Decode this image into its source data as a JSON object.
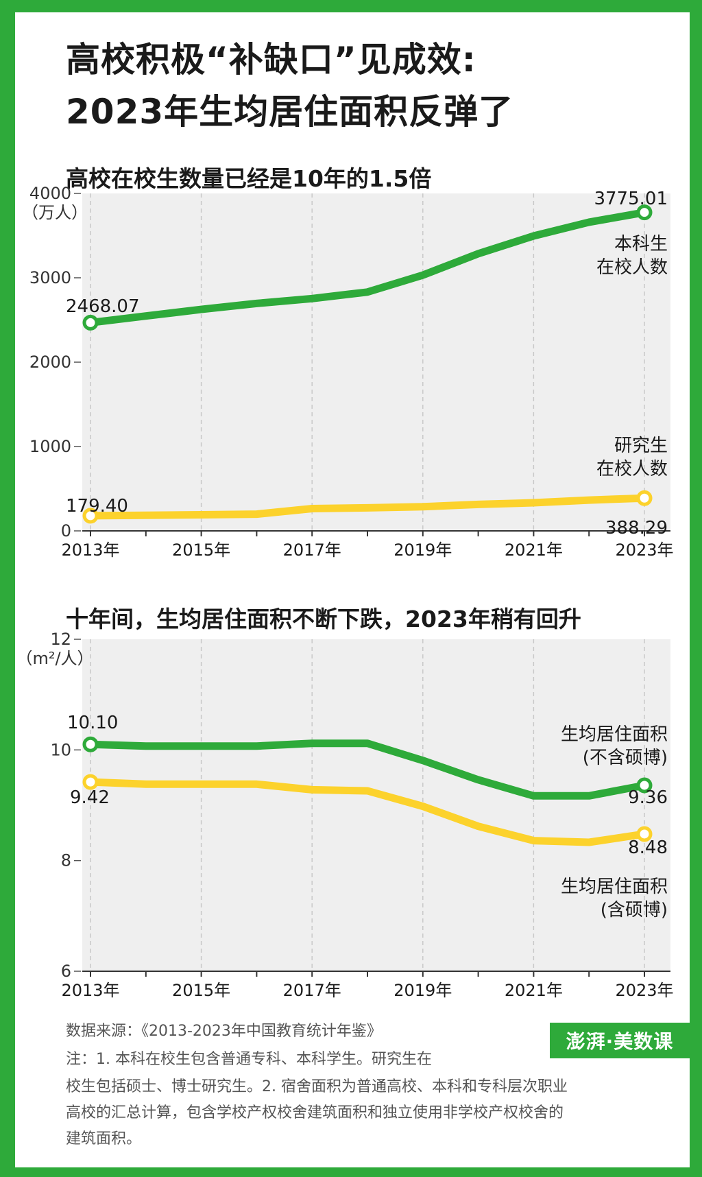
{
  "title_line1": "高校积极“补缺口”见成效:",
  "title_line2": "2023年生均居住面积反弹了",
  "colors": {
    "green": "#2eaa3a",
    "yellow": "#fcd22c",
    "plot_bg": "#efefef",
    "frame": "#2eaa3a"
  },
  "chart_data": [
    {
      "type": "line",
      "title": "高校在校生数量已经是10年的1.5倍",
      "ylabel": "（万人）",
      "ylim": [
        0,
        4000
      ],
      "yticks": [
        "0",
        "1000",
        "2000",
        "3000",
        "4000"
      ],
      "x_tick_labels": [
        "2013年",
        "2015年",
        "2017年",
        "2019年",
        "2021年",
        "2023年"
      ],
      "x": [
        2013,
        2014,
        2015,
        2016,
        2017,
        2018,
        2019,
        2020,
        2021,
        2022,
        2023
      ],
      "series": [
        {
          "name": "本科生在校人数",
          "label_lines": [
            "本科生",
            "在校人数"
          ],
          "color": "green",
          "values": [
            2468.07,
            2547,
            2625,
            2696,
            2754,
            2831,
            3032,
            3285,
            3496,
            3659,
            3775.01
          ],
          "first_label": "2468.07",
          "last_label": "3775.01"
        },
        {
          "name": "研究生在校人数",
          "label_lines": [
            "研究生",
            "在校人数"
          ],
          "color": "yellow",
          "values": [
            179.4,
            184.77,
            191.14,
            198.11,
            263.96,
            273.13,
            286.37,
            313.96,
            333.24,
            365.36,
            388.29
          ],
          "first_label": "179.40",
          "last_label": "388.29"
        }
      ]
    },
    {
      "type": "line",
      "title": "十年间，生均居住面积不断下跌，2023年稍有回升",
      "ylabel": "（m²/人）",
      "ylim": [
        6,
        12
      ],
      "yticks": [
        "6",
        "8",
        "10",
        "12"
      ],
      "x_tick_labels": [
        "2013年",
        "2015年",
        "2017年",
        "2019年",
        "2021年",
        "2023年"
      ],
      "x": [
        2013,
        2014,
        2015,
        2016,
        2017,
        2018,
        2019,
        2020,
        2021,
        2022,
        2023
      ],
      "series": [
        {
          "name": "生均居住面积(不含硕博)",
          "label_lines": [
            "生均居住面积",
            "(不含硕博)"
          ],
          "color": "green",
          "values": [
            10.1,
            10.07,
            10.07,
            10.07,
            10.12,
            10.12,
            9.81,
            9.46,
            9.17,
            9.17,
            9.36
          ],
          "first_label": "10.10",
          "last_label": "9.36"
        },
        {
          "name": "生均居住面积(含硕博)",
          "label_lines": [
            "生均居住面积",
            "(含硕博)"
          ],
          "color": "yellow",
          "values": [
            9.42,
            9.38,
            9.38,
            9.38,
            9.28,
            9.26,
            8.98,
            8.62,
            8.36,
            8.33,
            8.48
          ],
          "first_label": "9.42",
          "last_label": "8.48"
        }
      ]
    }
  ],
  "source": "数据来源：《2013-2023年中国教育统计年鉴》",
  "notes": [
    "注：1. 本科在校生包含普通专科、本科学生。研究生在",
    "校生包括硕士、博士研究生。2. 宿舍面积为普通高校、本科和专科层次职业",
    "高校的汇总计算，包含学校产权校舍建筑面积和独立使用非学校产权校舍的",
    "建筑面积。"
  ],
  "logo_text": "澎湃·美数课"
}
